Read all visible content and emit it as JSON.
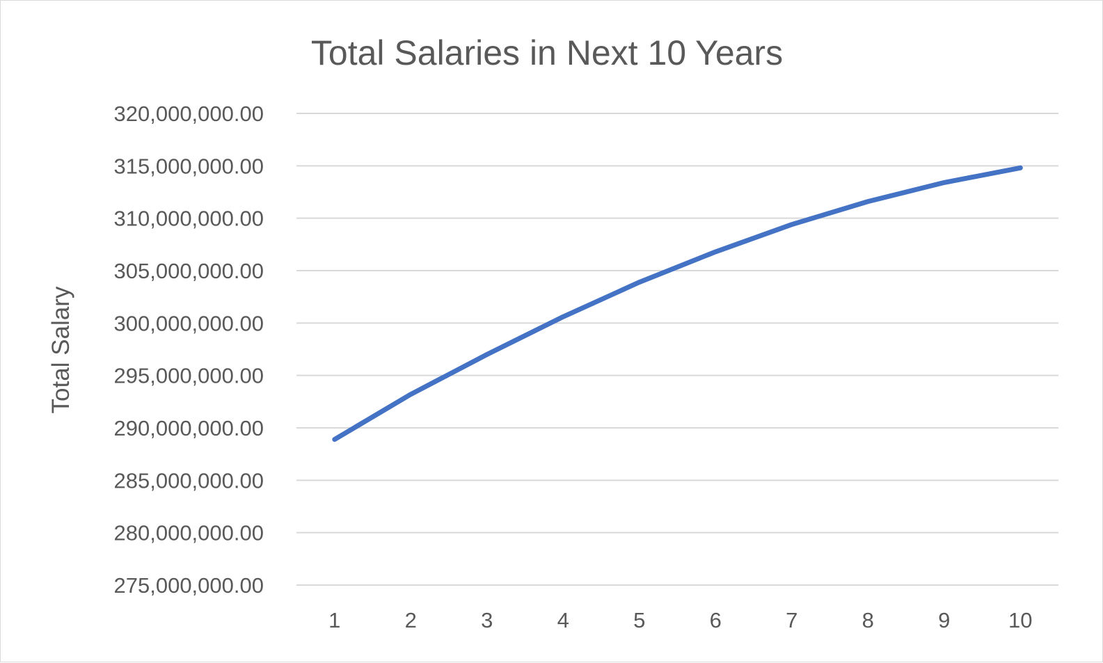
{
  "chart_data": {
    "type": "line",
    "title": "Total Salaries in Next 10 Years",
    "xlabel": "",
    "ylabel": "Total Salary",
    "x": [
      "1",
      "2",
      "3",
      "4",
      "5",
      "6",
      "7",
      "8",
      "9",
      "10"
    ],
    "y_ticks": [
      "275,000,000.00",
      "280,000,000.00",
      "285,000,000.00",
      "290,000,000.00",
      "295,000,000.00",
      "300,000,000.00",
      "305,000,000.00",
      "310,000,000.00",
      "315,000,000.00",
      "320,000,000.00"
    ],
    "ylim": [
      275000000,
      320000000
    ],
    "grid": true,
    "legend": "none",
    "series": [
      {
        "color": "#4472c4",
        "values": [
          288900000,
          293200000,
          297000000,
          300600000,
          303900000,
          306800000,
          309400000,
          311600000,
          313400000,
          314800000
        ]
      }
    ]
  }
}
